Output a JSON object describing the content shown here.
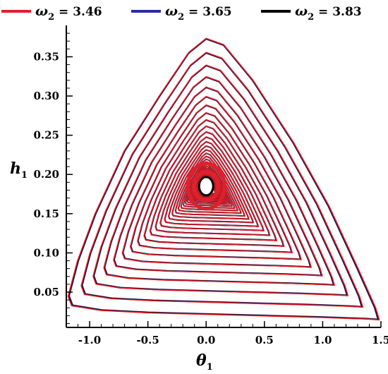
{
  "chart_data": {
    "type": "line",
    "title": "",
    "xlabel": {
      "symbol": "θ",
      "sub": "1"
    },
    "ylabel": {
      "symbol": "h",
      "sub": "1"
    },
    "xlim": [
      -1.2,
      1.5
    ],
    "ylim": [
      0.005,
      0.39
    ],
    "xticks": [
      -1.0,
      -0.5,
      0.0,
      0.5,
      1.0,
      1.5
    ],
    "xtick_labels": [
      "-1.0",
      "-0.5",
      "0.0",
      "0.5",
      "1.0",
      "1.5"
    ],
    "yticks": [
      0.05,
      0.1,
      0.15,
      0.2,
      0.25,
      0.3,
      0.35
    ],
    "ytick_labels": [
      "0.05",
      "0.10",
      "0.15",
      "0.20",
      "0.25",
      "0.30",
      "0.35"
    ],
    "grid": false,
    "legend_position": "top",
    "center": {
      "x": 0.0,
      "y": 0.185
    },
    "series": [
      {
        "name": {
          "symbol": "ω",
          "sub": "2",
          "value": " = 3.46"
        },
        "color": "#e0202a",
        "outer_orbit": {
          "x": [
            -1.18,
            -1.1,
            -0.95,
            -0.7,
            -0.4,
            -0.15,
            0.0,
            0.15,
            0.4,
            0.75,
            1.05,
            1.3,
            1.45,
            1.48,
            1.38,
            1.0,
            0.5,
            0.0,
            -0.5,
            -0.9,
            -1.15,
            -1.18
          ],
          "y": [
            0.045,
            0.09,
            0.15,
            0.23,
            0.3,
            0.355,
            0.373,
            0.365,
            0.32,
            0.24,
            0.16,
            0.08,
            0.03,
            0.015,
            0.016,
            0.018,
            0.02,
            0.022,
            0.024,
            0.027,
            0.033,
            0.045
          ]
        }
      },
      {
        "name": {
          "symbol": "ω",
          "sub": "2",
          "value": " = 3.65"
        },
        "color": "#2a2aa0"
      },
      {
        "name": {
          "symbol": "ω",
          "sub": "2",
          "value": " = 3.83"
        },
        "color": "#000000"
      }
    ]
  }
}
